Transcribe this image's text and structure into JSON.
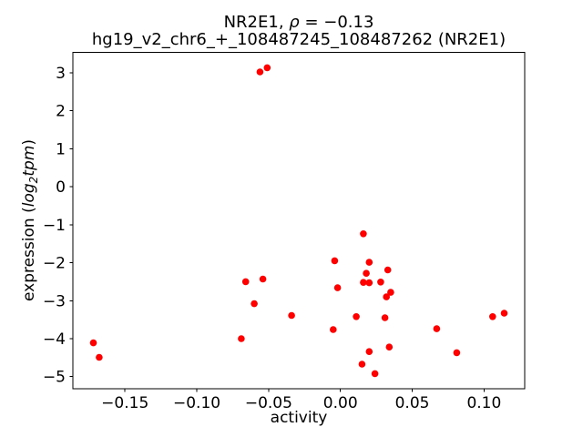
{
  "chart_data": {
    "type": "scatter",
    "title": "NR2E1, ρ = −0.13",
    "title_parts": {
      "prefix": "NR2E1, ",
      "rho": "ρ",
      "suffix": " = −0.13"
    },
    "subtitle": "hg19_v2_chr6_+_108487245_108487262 (NR2E1)",
    "xlabel": "activity",
    "ylabel": {
      "prefix": "expression (",
      "log": "log",
      "sub": "2",
      "tpm": "tpm",
      "suffix": ")"
    },
    "ylabel_plain": "expression (log2tpm)",
    "marker_color": "#ff0000",
    "axis_color": "#000000",
    "grid": false,
    "legend": false,
    "xlim": [
      -0.1863,
      0.1283
    ],
    "ylim": [
      -5.3225,
      3.5325
    ],
    "x_ticks": [
      {
        "value": -0.15,
        "label": "−0.15"
      },
      {
        "value": -0.1,
        "label": "−0.10"
      },
      {
        "value": -0.05,
        "label": "−0.05"
      },
      {
        "value": 0.0,
        "label": "0.00"
      },
      {
        "value": 0.05,
        "label": "0.05"
      },
      {
        "value": 0.1,
        "label": "0.10"
      }
    ],
    "y_ticks": [
      {
        "value": 3,
        "label": "3"
      },
      {
        "value": 2,
        "label": "2"
      },
      {
        "value": 1,
        "label": "1"
      },
      {
        "value": 0,
        "label": "0"
      },
      {
        "value": -1,
        "label": "−1"
      },
      {
        "value": -2,
        "label": "−2"
      },
      {
        "value": -3,
        "label": "−3"
      },
      {
        "value": -4,
        "label": "−4"
      },
      {
        "value": -5,
        "label": "−5"
      }
    ],
    "points": [
      [
        -0.172,
        -4.11
      ],
      [
        -0.168,
        -4.49
      ],
      [
        -0.056,
        3.02
      ],
      [
        -0.051,
        3.13
      ],
      [
        -0.066,
        -2.5
      ],
      [
        -0.054,
        -2.43
      ],
      [
        -0.06,
        -3.08
      ],
      [
        -0.034,
        -3.39
      ],
      [
        -0.069,
        -4.0
      ],
      [
        0.016,
        -1.24
      ],
      [
        -0.004,
        -1.95
      ],
      [
        0.02,
        -1.99
      ],
      [
        0.033,
        -2.19
      ],
      [
        0.018,
        -2.28
      ],
      [
        0.016,
        -2.52
      ],
      [
        0.02,
        -2.53
      ],
      [
        0.028,
        -2.51
      ],
      [
        -0.002,
        -2.66
      ],
      [
        0.035,
        -2.78
      ],
      [
        0.032,
        -2.9
      ],
      [
        0.011,
        -3.42
      ],
      [
        0.031,
        -3.45
      ],
      [
        -0.005,
        -3.76
      ],
      [
        0.034,
        -4.22
      ],
      [
        0.02,
        -4.34
      ],
      [
        0.015,
        -4.67
      ],
      [
        0.024,
        -4.92
      ],
      [
        0.106,
        -3.42
      ],
      [
        0.114,
        -3.33
      ],
      [
        0.067,
        -3.74
      ],
      [
        0.081,
        -4.37
      ]
    ]
  }
}
